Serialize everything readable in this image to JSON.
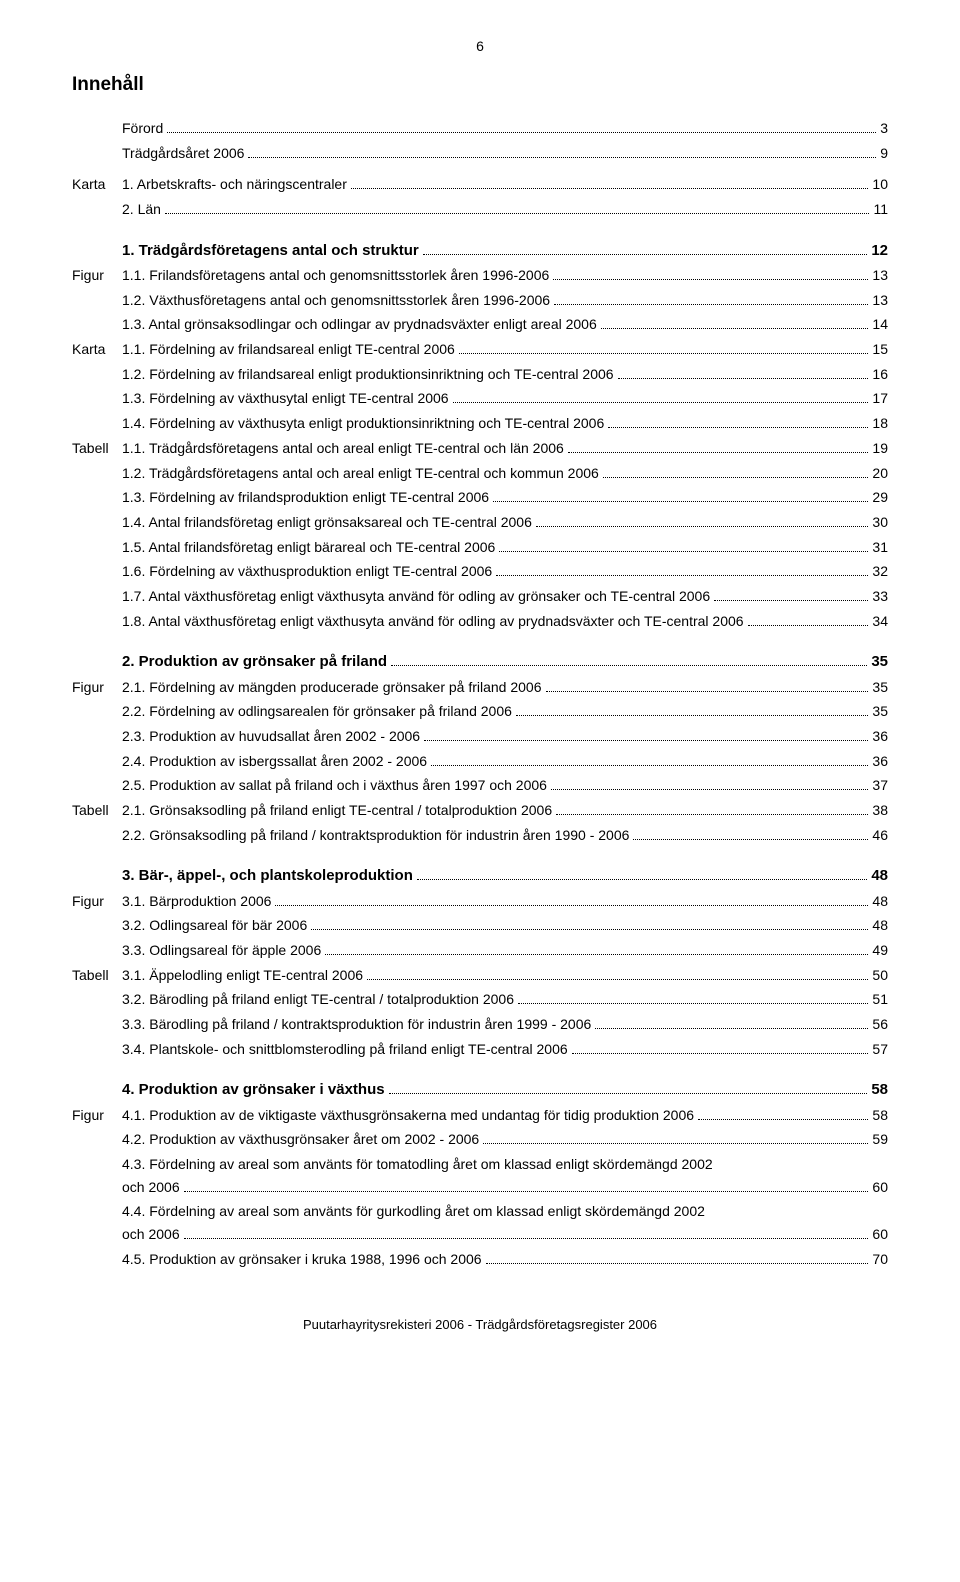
{
  "page_number": "6",
  "doc_title": "Innehåll",
  "footer": "Puutarhayritysrekisteri 2006 - Trädgårdsföretagsregister 2006",
  "colors": {
    "text": "#000000",
    "background": "#ffffff"
  },
  "typography": {
    "body_fontsize_pt": 10,
    "title_fontsize_pt": 14,
    "section_fontsize_pt": 11
  },
  "top": [
    {
      "prefix": "",
      "text": "Förord",
      "page": "3"
    },
    {
      "prefix": "",
      "text": "Trädgårdsåret 2006",
      "page": "9",
      "spaced": true
    },
    {
      "prefix": "Karta",
      "text": "1. Arbetskrafts- och näringscentraler",
      "page": "10"
    },
    {
      "prefix": "",
      "text": "2. Län",
      "page": "11"
    }
  ],
  "sections": [
    {
      "heading_prefix": "",
      "heading": "1. Trädgårdsföretagens antal och struktur",
      "heading_page": "12",
      "entries": [
        {
          "prefix": "Figur",
          "text": "1.1. Frilandsföretagens antal och genomsnittsstorlek åren 1996-2006",
          "page": "13"
        },
        {
          "prefix": "",
          "text": "1.2. Växthusföretagens antal och genomsnittsstorlek åren 1996-2006",
          "page": "13"
        },
        {
          "prefix": "",
          "text": "1.3. Antal grönsaksodlingar och odlingar av prydnadsväxter enligt areal 2006",
          "page": "14"
        },
        {
          "prefix": "Karta",
          "text": "1.1. Fördelning av frilandsareal enligt TE-central 2006",
          "page": "15"
        },
        {
          "prefix": "",
          "text": "1.2. Fördelning av frilandsareal enligt produktionsinriktning  och TE-central 2006",
          "page": "16"
        },
        {
          "prefix": "",
          "text": "1.3. Fördelning av växthusytal enligt TE-central 2006",
          "page": "17"
        },
        {
          "prefix": "",
          "text": "1.4. Fördelning av växthusyta enligt produktionsinriktning och TE-central 2006",
          "page": "18"
        },
        {
          "prefix": "Tabell",
          "text": "1.1. Trädgårdsföretagens antal och areal enligt TE-central och län 2006",
          "page": "19"
        },
        {
          "prefix": "",
          "text": "1.2. Trädgårdsföretagens antal och areal enligt TE-central och kommun 2006",
          "page": "20"
        },
        {
          "prefix": "",
          "text": "1.3. Fördelning av frilandsproduktion enligt TE-central 2006",
          "page": "29"
        },
        {
          "prefix": "",
          "text": "1.4. Antal frilandsföretag enligt grönsaksareal och TE-central 2006",
          "page": "30"
        },
        {
          "prefix": "",
          "text": "1.5. Antal frilandsföretag enligt bärareal och TE-central 2006",
          "page": "31"
        },
        {
          "prefix": "",
          "text": "1.6. Fördelning av växthusproduktion enligt TE-central 2006",
          "page": "32"
        },
        {
          "prefix": "",
          "text": "1.7. Antal växthusföretag enligt växthusyta använd för odling av grönsaker och TE-central 2006",
          "page": "33"
        },
        {
          "prefix": "",
          "text": "1.8. Antal växthusföretag enligt växthusyta använd för odling av prydnadsväxter och TE-central 2006",
          "page": "34"
        }
      ]
    },
    {
      "heading_prefix": "",
      "heading": "2. Produktion av grönsaker på friland",
      "heading_page": "35",
      "entries": [
        {
          "prefix": "Figur",
          "text": "2.1. Fördelning av mängden producerade grönsaker på friland 2006",
          "page": "35"
        },
        {
          "prefix": "",
          "text": "2.2. Fördelning av odlingsarealen för grönsaker på friland 2006",
          "page": "35"
        },
        {
          "prefix": "",
          "text": "2.3. Produktion av huvudsallat åren 2002 - 2006",
          "page": "36"
        },
        {
          "prefix": "",
          "text": "2.4. Produktion av isbergssallat åren 2002 - 2006",
          "page": "36"
        },
        {
          "prefix": "",
          "text": "2.5. Produktion av sallat på friland och i växthus åren 1997 och 2006",
          "page": "37"
        },
        {
          "prefix": "Tabell",
          "text": "2.1. Grönsaksodling på friland enligt TE-central / totalproduktion 2006",
          "page": "38"
        },
        {
          "prefix": "",
          "text": "2.2. Grönsaksodling på friland / kontraktsproduktion för industrin åren 1990 - 2006",
          "page": "46"
        }
      ]
    },
    {
      "heading_prefix": "",
      "heading": "3. Bär-, äppel-, och plantskoleproduktion",
      "heading_page": "48",
      "entries": [
        {
          "prefix": "Figur",
          "text": "3.1. Bärproduktion 2006",
          "page": "48"
        },
        {
          "prefix": "",
          "text": "3.2. Odlingsareal för bär 2006",
          "page": "48"
        },
        {
          "prefix": "",
          "text": "3.3. Odlingsareal för äpple 2006",
          "page": "49"
        },
        {
          "prefix": "Tabell",
          "text": "3.1. Äppelodling enligt TE-central 2006",
          "page": "50"
        },
        {
          "prefix": "",
          "text": "3.2. Bärodling på friland enligt TE-central / totalproduktion 2006",
          "page": "51"
        },
        {
          "prefix": "",
          "text": "3.3. Bärodling på friland / kontraktsproduktion för industrin åren 1999 - 2006",
          "page": "56"
        },
        {
          "prefix": "",
          "text": "3.4. Plantskole- och snittblomsterodling på friland enligt TE-central 2006",
          "page": "57"
        }
      ]
    },
    {
      "heading_prefix": "",
      "heading": "4. Produktion av grönsaker i växthus",
      "heading_page": "58",
      "entries": [
        {
          "prefix": "Figur",
          "text": "4.1. Produktion av de viktigaste växthusgrönsakerna med undantag för tidig produktion 2006",
          "page": "58"
        },
        {
          "prefix": "",
          "text": "4.2. Produktion av växthusgrönsaker året om 2002 - 2006",
          "page": "59"
        },
        {
          "prefix": "",
          "text": "4.3. Fördelning av areal som använts för tomatodling året om klassad enligt skördemängd 2002",
          "sub": "och 2006",
          "page": "60"
        },
        {
          "prefix": "",
          "text": "4.4. Fördelning av areal som använts för gurkodling året om klassad enligt skördemängd 2002",
          "sub": " och 2006",
          "page": "60"
        },
        {
          "prefix": "",
          "text": "4.5. Produktion av grönsaker i kruka 1988, 1996 och 2006",
          "page": "70"
        }
      ]
    }
  ]
}
